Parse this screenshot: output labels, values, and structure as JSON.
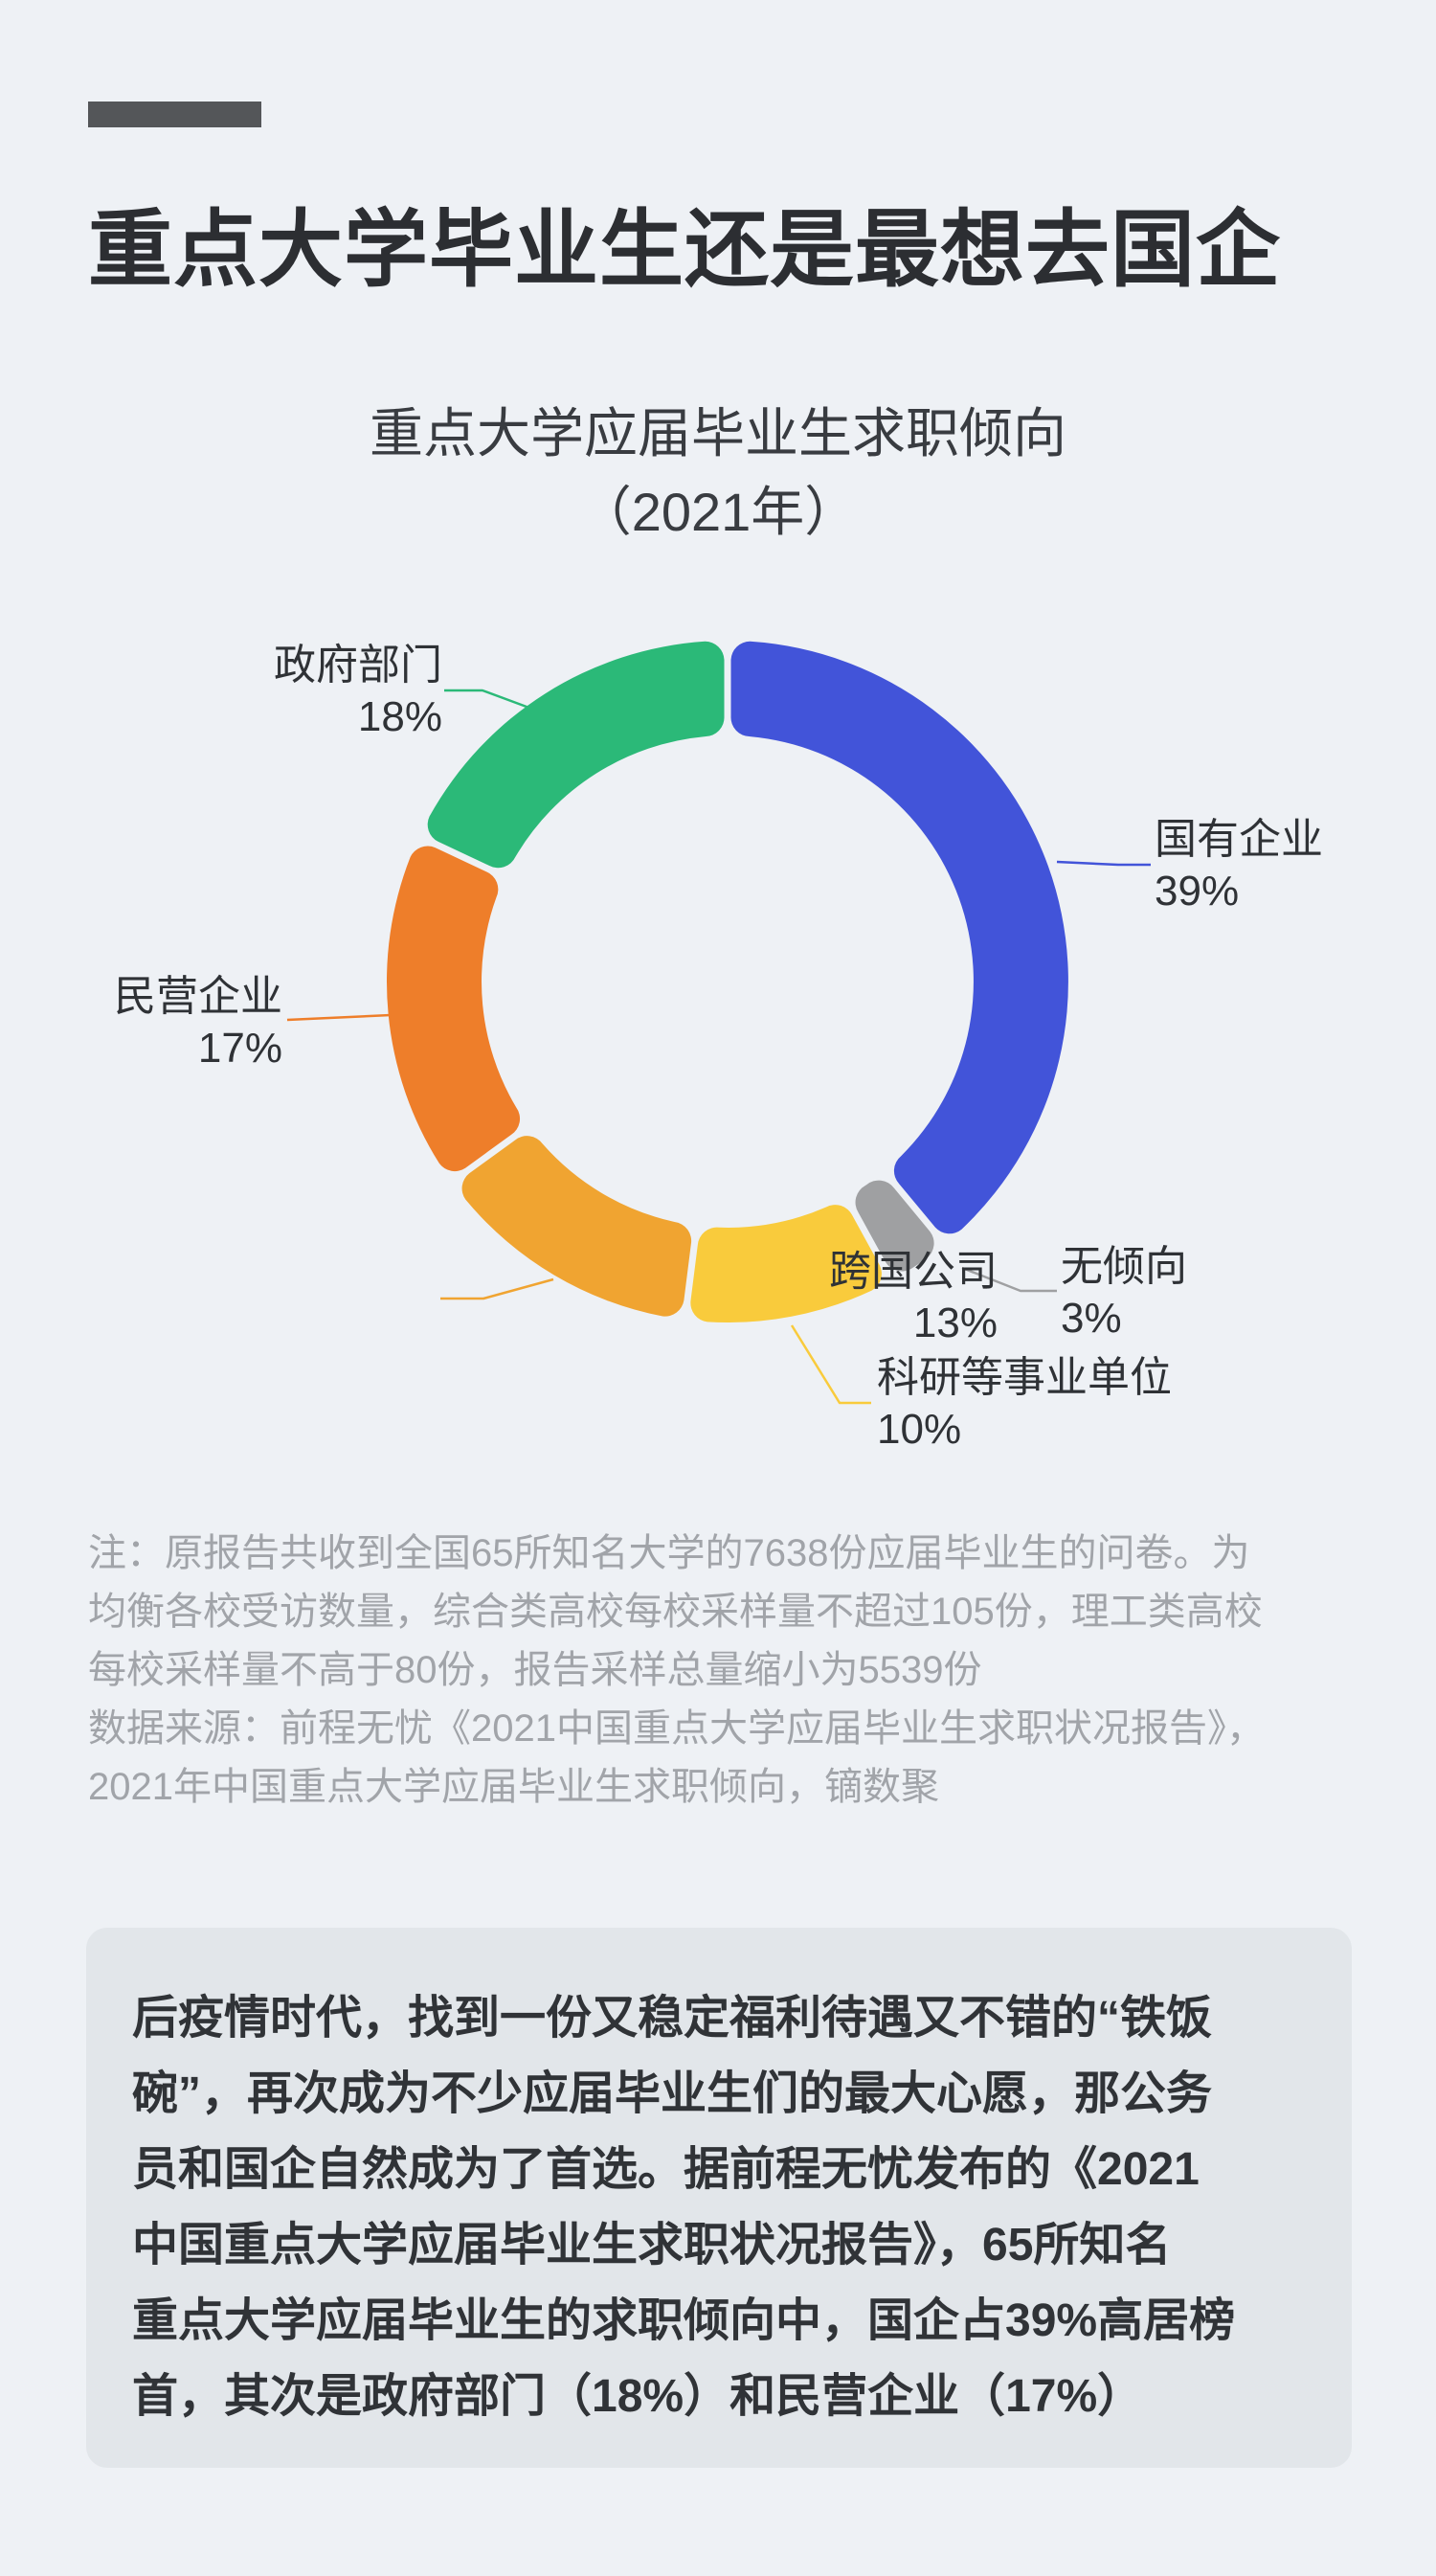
{
  "header": {
    "title": "重点大学毕业生还是最想去国企"
  },
  "chart_data": {
    "type": "pie",
    "donut": true,
    "title": "重点大学应届毕业生求职倾向",
    "subtitle": "（2021年）",
    "start_angle_deg": 0,
    "direction": "clockwise",
    "slices": [
      {
        "label": "国有企业",
        "value": 39,
        "pct": "39%",
        "color": "#4254d9"
      },
      {
        "label": "无倾向",
        "value": 3,
        "pct": "3%",
        "color": "#9fa0a2"
      },
      {
        "label": "科研等事业单位",
        "value": 10,
        "pct": "10%",
        "color": "#f9cb3c"
      },
      {
        "label": "跨国公司",
        "value": 13,
        "pct": "13%",
        "color": "#f0a431"
      },
      {
        "label": "民营企业",
        "value": 17,
        "pct": "17%",
        "color": "#ee7e2a"
      },
      {
        "label": "政府部门",
        "value": 18,
        "pct": "18%",
        "color": "#2bb978"
      }
    ]
  },
  "note": {
    "lines": [
      "注：原报告共收到全国65所知名大学的7638份应届毕业生的问卷。为",
      "均衡各校受访数量，综合类高校每校采样量不超过105份，理工类高校",
      "每校采样量不高于80份，报告采样总量缩小为5539份",
      "数据来源：前程无忧《2021中国重点大学应届毕业生求职状况报告》，",
      "2021年中国重点大学应届毕业生求职倾向，镝数聚"
    ]
  },
  "summary": {
    "lines": [
      "后疫情时代，找到一份又稳定福利待遇又不错的“铁饭",
      "碗”，再次成为不少应届毕业生们的最大心愿，那公务",
      "员和国企自然成为了首选。据前程无忧发布的《2021",
      "中国重点大学应届毕业生求职状况报告》，65所知名",
      "重点大学应届毕业生的求职倾向中，国企占39%高居榜",
      "首，其次是政府部门（18%）和民营企业（17%）"
    ]
  }
}
